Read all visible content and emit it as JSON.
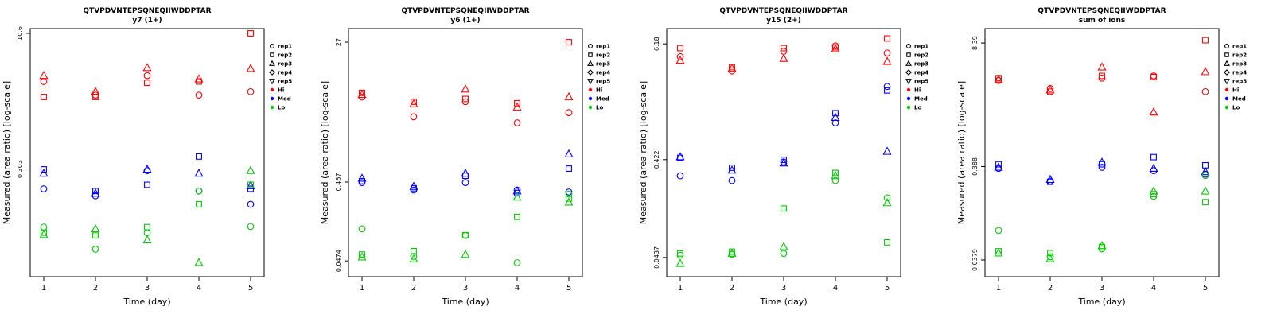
{
  "page": {
    "background": "#ffffff"
  },
  "common": {
    "ylabel": "Measured (area ratio) [log-scale]",
    "xlabel": "Time (day)",
    "x": [
      1,
      2,
      3,
      4,
      5
    ],
    "x_tick_labels": [
      "1",
      "2",
      "3",
      "4",
      "5"
    ],
    "colors": {
      "Hi": "#FF0000",
      "Med": "#0000FF",
      "Lo": "#00CC00",
      "axis": "#000000"
    },
    "legend": {
      "reps": [
        {
          "label": "rep1",
          "marker": "circle"
        },
        {
          "label": "rep2",
          "marker": "square"
        },
        {
          "label": "rep3",
          "marker": "triangle"
        },
        {
          "label": "rep4",
          "marker": "diamond"
        },
        {
          "label": "rep5",
          "marker": "triangle-down"
        }
      ],
      "levels": [
        {
          "label": "Hi",
          "color": "#FF0000"
        },
        {
          "label": "Med",
          "color": "#0000FF"
        },
        {
          "label": "Lo",
          "color": "#00CC00"
        }
      ]
    }
  },
  "chart_data": [
    {
      "type": "scatter",
      "title": "QTVPDVNTEPSQNEQIIWDDPTAR",
      "subtitle": "y7 (1+)",
      "xlabel": "Time (day)",
      "ylabel": "Measured (area ratio) [log-scale]",
      "yscale": "log",
      "ylim": [
        0.018,
        12
      ],
      "yticks": [
        {
          "value": 10.6,
          "label": "10.6"
        },
        {
          "value": 0.303,
          "label": "0.303"
        }
      ],
      "series": [
        {
          "name": "Hi rep1",
          "level": "Hi",
          "rep": "rep1",
          "marker": "circle",
          "values": [
            3.0,
            2.1,
            3.5,
            2.1,
            2.3
          ]
        },
        {
          "name": "Hi rep2",
          "level": "Hi",
          "rep": "rep2",
          "marker": "square",
          "values": [
            2.0,
            2.0,
            2.9,
            3.0,
            10.6
          ]
        },
        {
          "name": "Hi rep3",
          "level": "Hi",
          "rep": "rep3",
          "marker": "triangle",
          "values": [
            3.5,
            2.3,
            4.3,
            3.2,
            4.2
          ]
        },
        {
          "name": "Med rep1",
          "level": "Med",
          "rep": "rep1",
          "marker": "circle",
          "values": [
            0.18,
            0.15,
            0.29,
            0.17,
            0.12
          ]
        },
        {
          "name": "Med rep2",
          "level": "Med",
          "rep": "rep2",
          "marker": "square",
          "values": [
            0.3,
            0.17,
            0.2,
            0.42,
            0.18
          ]
        },
        {
          "name": "Med rep3",
          "level": "Med",
          "rep": "rep3",
          "marker": "triangle",
          "values": [
            0.27,
            0.16,
            0.3,
            0.27,
            0.195
          ]
        },
        {
          "name": "Lo rep1",
          "level": "Lo",
          "rep": "rep1",
          "marker": "circle",
          "values": [
            0.066,
            0.037,
            0.057,
            0.17,
            0.067
          ]
        },
        {
          "name": "Lo rep2",
          "level": "Lo",
          "rep": "rep2",
          "marker": "square",
          "values": [
            0.057,
            0.053,
            0.066,
            0.12,
            0.2
          ]
        },
        {
          "name": "Lo rep3",
          "level": "Lo",
          "rep": "rep3",
          "marker": "triangle",
          "values": [
            0.054,
            0.063,
            0.047,
            0.026,
            0.29
          ]
        }
      ]
    },
    {
      "type": "scatter",
      "title": "QTVPDVNTEPSQNEQIIWDDPTAR",
      "subtitle": "y6 (1+)",
      "xlabel": "Time (day)",
      "ylabel": "Measured (area ratio) [log-scale]",
      "yscale": "log",
      "ylim": [
        0.03,
        40
      ],
      "yticks": [
        {
          "value": 27,
          "label": "27"
        },
        {
          "value": 0.467,
          "label": "0.467"
        },
        {
          "value": 0.0474,
          "label": "0.0474"
        }
      ],
      "series": [
        {
          "name": "Hi rep1",
          "level": "Hi",
          "rep": "rep1",
          "marker": "circle",
          "values": [
            5.5,
            3.1,
            4.8,
            2.6,
            3.5
          ]
        },
        {
          "name": "Hi rep2",
          "level": "Hi",
          "rep": "rep2",
          "marker": "square",
          "values": [
            6.2,
            4.8,
            5.2,
            4.6,
            27
          ]
        },
        {
          "name": "Hi rep3",
          "level": "Hi",
          "rep": "rep3",
          "marker": "triangle",
          "values": [
            5.9,
            4.5,
            6.9,
            4.1,
            5.5
          ]
        },
        {
          "name": "Med rep1",
          "level": "Med",
          "rep": "rep1",
          "marker": "circle",
          "values": [
            0.46,
            0.37,
            0.46,
            0.37,
            0.35
          ]
        },
        {
          "name": "Med rep2",
          "level": "Med",
          "rep": "rep2",
          "marker": "square",
          "values": [
            0.48,
            0.39,
            0.56,
            0.34,
            0.69
          ]
        },
        {
          "name": "Med rep3",
          "level": "Med",
          "rep": "rep3",
          "marker": "triangle",
          "values": [
            0.52,
            0.41,
            0.6,
            0.36,
            1.05
          ]
        },
        {
          "name": "Lo rep1",
          "level": "Lo",
          "rep": "rep1",
          "marker": "circle",
          "values": [
            0.12,
            0.054,
            0.099,
            0.045,
            0.33
          ]
        },
        {
          "name": "Lo rep2",
          "level": "Lo",
          "rep": "rep2",
          "marker": "square",
          "values": [
            0.057,
            0.063,
            0.1,
            0.17,
            0.29
          ]
        },
        {
          "name": "Lo rep3",
          "level": "Lo",
          "rep": "rep3",
          "marker": "triangle",
          "values": [
            0.053,
            0.05,
            0.057,
            0.3,
            0.26
          ]
        }
      ]
    },
    {
      "type": "scatter",
      "title": "QTVPDVNTEPSQNEQIIWDDPTAR",
      "subtitle": "y15 (2+)",
      "xlabel": "Time (day)",
      "ylabel": "Measured (area ratio) [log-scale]",
      "yscale": "log",
      "ylim": [
        0.028,
        8.8
      ],
      "yticks": [
        {
          "value": 6.18,
          "label": "6.18"
        },
        {
          "value": 0.422,
          "label": "0.422"
        },
        {
          "value": 0.0437,
          "label": "0.0437"
        }
      ],
      "series": [
        {
          "name": "Hi rep1",
          "level": "Hi",
          "rep": "rep1",
          "marker": "circle",
          "values": [
            4.6,
            3.3,
            5.2,
            5.9,
            5.0
          ]
        },
        {
          "name": "Hi rep2",
          "level": "Hi",
          "rep": "rep2",
          "marker": "square",
          "values": [
            5.6,
            3.6,
            5.6,
            5.7,
            7.0
          ]
        },
        {
          "name": "Hi rep3",
          "level": "Hi",
          "rep": "rep3",
          "marker": "triangle",
          "values": [
            4.2,
            3.5,
            4.4,
            5.5,
            4.1
          ]
        },
        {
          "name": "Med rep1",
          "level": "Med",
          "rep": "rep1",
          "marker": "circle",
          "values": [
            0.29,
            0.26,
            0.4,
            0.99,
            2.3
          ]
        },
        {
          "name": "Med rep2",
          "level": "Med",
          "rep": "rep2",
          "marker": "square",
          "values": [
            0.44,
            0.35,
            0.42,
            1.24,
            2.1
          ]
        },
        {
          "name": "Med rep3",
          "level": "Med",
          "rep": "rep3",
          "marker": "triangle",
          "values": [
            0.45,
            0.33,
            0.39,
            1.12,
            0.51
          ]
        },
        {
          "name": "Lo rep1",
          "level": "Lo",
          "rep": "rep1",
          "marker": "circle",
          "values": [
            0.046,
            0.047,
            0.048,
            0.26,
            0.174
          ]
        },
        {
          "name": "Lo rep2",
          "level": "Lo",
          "rep": "rep2",
          "marker": "square",
          "values": [
            0.048,
            0.05,
            0.136,
            0.31,
            0.062
          ]
        },
        {
          "name": "Lo rep3",
          "level": "Lo",
          "rep": "rep3",
          "marker": "triangle",
          "values": [
            0.038,
            0.048,
            0.056,
            0.29,
            0.155
          ]
        }
      ]
    },
    {
      "type": "scatter",
      "title": "QTVPDVNTEPSQNEQIIWDDPTAR",
      "subtitle": "sum of ions",
      "xlabel": "Time (day)",
      "ylabel": "Measured (area ratio) [log-scale]",
      "yscale": "log",
      "ylim": [
        0.025,
        12
      ],
      "yticks": [
        {
          "value": 8.39,
          "label": "8.39"
        },
        {
          "value": 0.388,
          "label": "0.388"
        },
        {
          "value": 0.0379,
          "label": "0.0379"
        }
      ],
      "series": [
        {
          "name": "Hi rep1",
          "level": "Hi",
          "rep": "rep1",
          "marker": "circle",
          "values": [
            3.3,
            2.7,
            3.5,
            3.7,
            2.5
          ]
        },
        {
          "name": "Hi rep2",
          "level": "Hi",
          "rep": "rep2",
          "marker": "square",
          "values": [
            3.5,
            2.5,
            3.7,
            3.6,
            9.0
          ]
        },
        {
          "name": "Hi rep3",
          "level": "Hi",
          "rep": "rep3",
          "marker": "triangle",
          "values": [
            3.4,
            2.6,
            4.6,
            1.5,
            4.1
          ]
        },
        {
          "name": "Med rep1",
          "level": "Med",
          "rep": "rep1",
          "marker": "circle",
          "values": [
            0.37,
            0.27,
            0.38,
            0.35,
            0.32
          ]
        },
        {
          "name": "Med rep2",
          "level": "Med",
          "rep": "rep2",
          "marker": "square",
          "values": [
            0.41,
            0.265,
            0.41,
            0.49,
            0.4
          ]
        },
        {
          "name": "Med rep3",
          "level": "Med",
          "rep": "rep3",
          "marker": "triangle",
          "values": [
            0.38,
            0.28,
            0.43,
            0.37,
            0.34
          ]
        },
        {
          "name": "Lo rep1",
          "level": "Lo",
          "rep": "rep1",
          "marker": "circle",
          "values": [
            0.079,
            0.041,
            0.05,
            0.185,
            0.31
          ]
        },
        {
          "name": "Lo rep2",
          "level": "Lo",
          "rep": "rep2",
          "marker": "square",
          "values": [
            0.047,
            0.045,
            0.052,
            0.195,
            0.16
          ]
        },
        {
          "name": "Lo rep3",
          "level": "Lo",
          "rep": "rep3",
          "marker": "triangle",
          "values": [
            0.045,
            0.039,
            0.054,
            0.21,
            0.21
          ]
        }
      ]
    }
  ]
}
